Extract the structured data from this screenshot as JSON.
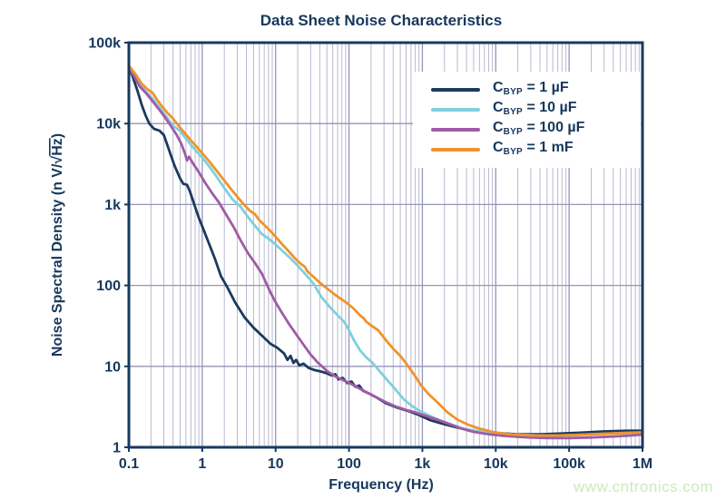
{
  "watermark": "www.cntronics.com",
  "colors": {
    "text_navy": "#16375c",
    "plot_border": "#17395f",
    "grid_major": "#9595b8",
    "grid_minor": "#b9b9cf",
    "watermark_green": "#cdeaba",
    "background": "#ffffff"
  },
  "chart_data": {
    "type": "line",
    "title": "Data Sheet Noise Characteristics",
    "xlabel": "Frequency (Hz)",
    "ylabel": "Noise Spectral Density (n V/√Hz)",
    "ylabel_parts": {
      "prefix": "Noise Spectral Density (n V/",
      "sqrt": "√",
      "sqrt_arg": "Hz",
      "suffix": ")"
    },
    "x_scale": "log",
    "y_scale": "log",
    "xlim": [
      0.1,
      1000000
    ],
    "ylim": [
      1,
      100000
    ],
    "grid": {
      "vertical_minor": true,
      "horizontal_minor": false
    },
    "legend_position": "top-right",
    "x_ticks": [
      {
        "label": "0.1",
        "value": 0.1
      },
      {
        "label": "1",
        "value": 1
      },
      {
        "label": "10",
        "value": 10
      },
      {
        "label": "100",
        "value": 100
      },
      {
        "label": "1k",
        "value": 1000
      },
      {
        "label": "10k",
        "value": 10000
      },
      {
        "label": "100k",
        "value": 100000
      },
      {
        "label": "1M",
        "value": 1000000
      }
    ],
    "y_ticks": [
      {
        "label": "100k",
        "value": 100000
      },
      {
        "label": "10k",
        "value": 10000
      },
      {
        "label": "1k",
        "value": 1000
      },
      {
        "label": "100",
        "value": 100
      },
      {
        "label": "10",
        "value": 10
      },
      {
        "label": "1",
        "value": 1
      }
    ],
    "series": [
      {
        "name": "CBYP = 1 uF",
        "legend": {
          "cap": "C",
          "sub": "BYP",
          "rest": " = 1 µF"
        },
        "color": "#1b3a5e",
        "points": [
          [
            0.1,
            52000
          ],
          [
            0.115,
            36000
          ],
          [
            0.13,
            26000
          ],
          [
            0.15,
            17000
          ],
          [
            0.17,
            12500
          ],
          [
            0.19,
            10000
          ],
          [
            0.22,
            8600
          ],
          [
            0.26,
            8200
          ],
          [
            0.3,
            7200
          ],
          [
            0.35,
            4800
          ],
          [
            0.42,
            3000
          ],
          [
            0.5,
            2100
          ],
          [
            0.55,
            1800
          ],
          [
            0.62,
            1750
          ],
          [
            0.68,
            1450
          ],
          [
            0.78,
            1000
          ],
          [
            0.9,
            680
          ],
          [
            1.05,
            480
          ],
          [
            1.25,
            320
          ],
          [
            1.5,
            210
          ],
          [
            1.8,
            130
          ],
          [
            2.2,
            95
          ],
          [
            2.8,
            62
          ],
          [
            3.8,
            40
          ],
          [
            5,
            30
          ],
          [
            6.5,
            24
          ],
          [
            8.5,
            19
          ],
          [
            10.5,
            17
          ],
          [
            13,
            14.5
          ],
          [
            14.5,
            12
          ],
          [
            16,
            13.5
          ],
          [
            17.5,
            11
          ],
          [
            19,
            12
          ],
          [
            21,
            10.3
          ],
          [
            24,
            10.8
          ],
          [
            28,
            9.6
          ],
          [
            34,
            9.0
          ],
          [
            42,
            8.6
          ],
          [
            50,
            8.2
          ],
          [
            58,
            7.7
          ],
          [
            65,
            8.0
          ],
          [
            72,
            6.9
          ],
          [
            82,
            7.2
          ],
          [
            95,
            6.2
          ],
          [
            108,
            6.5
          ],
          [
            122,
            5.6
          ],
          [
            138,
            5.8
          ],
          [
            155,
            5.0
          ],
          [
            190,
            4.6
          ],
          [
            240,
            4.1
          ],
          [
            320,
            3.5
          ],
          [
            450,
            3.1
          ],
          [
            650,
            2.8
          ],
          [
            900,
            2.5
          ],
          [
            1300,
            2.15
          ],
          [
            1900,
            1.95
          ],
          [
            2800,
            1.78
          ],
          [
            4200,
            1.65
          ],
          [
            6500,
            1.55
          ],
          [
            10000,
            1.5
          ],
          [
            20000,
            1.45
          ],
          [
            40000,
            1.45
          ],
          [
            80000,
            1.48
          ],
          [
            150000,
            1.52
          ],
          [
            300000,
            1.57
          ],
          [
            600000,
            1.6
          ],
          [
            1000000,
            1.6
          ]
        ]
      },
      {
        "name": "CBYP = 10 uF",
        "legend": {
          "cap": "C",
          "sub": "BYP",
          "rest": " = 10 µF"
        },
        "color": "#7fd0dc",
        "points": [
          [
            0.1,
            51000
          ],
          [
            0.12,
            38000
          ],
          [
            0.14,
            31000
          ],
          [
            0.17,
            25000
          ],
          [
            0.2,
            21500
          ],
          [
            0.24,
            17500
          ],
          [
            0.29,
            14000
          ],
          [
            0.34,
            11500
          ],
          [
            0.4,
            9400
          ],
          [
            0.45,
            8700
          ],
          [
            0.5,
            8100
          ],
          [
            0.6,
            6500
          ],
          [
            0.72,
            5300
          ],
          [
            0.88,
            4300
          ],
          [
            1.05,
            3600
          ],
          [
            1.3,
            2800
          ],
          [
            1.6,
            2150
          ],
          [
            2,
            1600
          ],
          [
            2.6,
            1150
          ],
          [
            3.3,
            950
          ],
          [
            4.2,
            700
          ],
          [
            5.2,
            550
          ],
          [
            6.5,
            430
          ],
          [
            8,
            380
          ],
          [
            10,
            320
          ],
          [
            12.5,
            265
          ],
          [
            16,
            215
          ],
          [
            20,
            175
          ],
          [
            26,
            135
          ],
          [
            33,
            105
          ],
          [
            42,
            72
          ],
          [
            54,
            55
          ],
          [
            68,
            44
          ],
          [
            87,
            35
          ],
          [
            100,
            28
          ],
          [
            117,
            21
          ],
          [
            140,
            16
          ],
          [
            170,
            13
          ],
          [
            210,
            11
          ],
          [
            260,
            8.8
          ],
          [
            330,
            6.8
          ],
          [
            400,
            5.6
          ],
          [
            470,
            4.7
          ],
          [
            560,
            3.9
          ],
          [
            700,
            3.3
          ],
          [
            900,
            2.85
          ],
          [
            1200,
            2.5
          ],
          [
            1700,
            2.15
          ],
          [
            2500,
            1.9
          ],
          [
            3800,
            1.68
          ],
          [
            6000,
            1.57
          ],
          [
            10000,
            1.48
          ],
          [
            20000,
            1.43
          ],
          [
            40000,
            1.4
          ],
          [
            80000,
            1.4
          ],
          [
            160000,
            1.43
          ],
          [
            320000,
            1.47
          ],
          [
            640000,
            1.5
          ],
          [
            1000000,
            1.52
          ]
        ]
      },
      {
        "name": "CBYP = 100 uF",
        "legend": {
          "cap": "C",
          "sub": "BYP",
          "rest": " = 100 µF"
        },
        "color": "#a05ba5",
        "points": [
          [
            0.1,
            50000
          ],
          [
            0.12,
            37000
          ],
          [
            0.14,
            29000
          ],
          [
            0.17,
            24000
          ],
          [
            0.2,
            20000
          ],
          [
            0.25,
            15500
          ],
          [
            0.3,
            12500
          ],
          [
            0.37,
            9500
          ],
          [
            0.45,
            7200
          ],
          [
            0.52,
            5600
          ],
          [
            0.58,
            4300
          ],
          [
            0.62,
            3500
          ],
          [
            0.66,
            3900
          ],
          [
            0.75,
            3200
          ],
          [
            0.9,
            2500
          ],
          [
            1.1,
            1850
          ],
          [
            1.35,
            1400
          ],
          [
            1.7,
            1050
          ],
          [
            2.1,
            760
          ],
          [
            2.7,
            520
          ],
          [
            3.4,
            350
          ],
          [
            4.2,
            250
          ],
          [
            5.2,
            190
          ],
          [
            6.5,
            140
          ],
          [
            7.5,
            105
          ],
          [
            8.5,
            82
          ],
          [
            10,
            62
          ],
          [
            12,
            47
          ],
          [
            15,
            34
          ],
          [
            19,
            25
          ],
          [
            24,
            18.5
          ],
          [
            30,
            14
          ],
          [
            38,
            11
          ],
          [
            43,
            10
          ],
          [
            50,
            8.8
          ],
          [
            65,
            7.5
          ],
          [
            85,
            6.7
          ],
          [
            110,
            6.0
          ],
          [
            140,
            5.3
          ],
          [
            180,
            4.7
          ],
          [
            240,
            4.1
          ],
          [
            320,
            3.6
          ],
          [
            430,
            3.2
          ],
          [
            600,
            2.9
          ],
          [
            800,
            2.7
          ],
          [
            1100,
            2.45
          ],
          [
            1600,
            2.2
          ],
          [
            2300,
            1.95
          ],
          [
            3400,
            1.7
          ],
          [
            5000,
            1.55
          ],
          [
            8000,
            1.45
          ],
          [
            13000,
            1.38
          ],
          [
            25000,
            1.33
          ],
          [
            50000,
            1.3
          ],
          [
            100000,
            1.3
          ],
          [
            200000,
            1.32
          ],
          [
            400000,
            1.36
          ],
          [
            700000,
            1.4
          ],
          [
            1000000,
            1.44
          ]
        ]
      },
      {
        "name": "CBYP = 1 mF",
        "legend": {
          "cap": "C",
          "sub": "BYP",
          "rest": " = 1 mF"
        },
        "color": "#f0932a",
        "points": [
          [
            0.1,
            52000
          ],
          [
            0.125,
            40000
          ],
          [
            0.15,
            31000
          ],
          [
            0.18,
            26500
          ],
          [
            0.21,
            24000
          ],
          [
            0.24,
            20000
          ],
          [
            0.28,
            16500
          ],
          [
            0.33,
            13800
          ],
          [
            0.4,
            11500
          ],
          [
            0.48,
            9300
          ],
          [
            0.58,
            7600
          ],
          [
            0.7,
            6200
          ],
          [
            0.85,
            5100
          ],
          [
            1,
            4300
          ],
          [
            1.25,
            3400
          ],
          [
            1.55,
            2650
          ],
          [
            1.9,
            2100
          ],
          [
            2.4,
            1600
          ],
          [
            3,
            1250
          ],
          [
            3.7,
            1000
          ],
          [
            4.5,
            830
          ],
          [
            5.2,
            760
          ],
          [
            6,
            640
          ],
          [
            7,
            560
          ],
          [
            8.5,
            470
          ],
          [
            10,
            400
          ],
          [
            12,
            330
          ],
          [
            15,
            265
          ],
          [
            18,
            220
          ],
          [
            22,
            185
          ],
          [
            25,
            170
          ],
          [
            27,
            150
          ],
          [
            32,
            130
          ],
          [
            40,
            108
          ],
          [
            50,
            92
          ],
          [
            63,
            78
          ],
          [
            78,
            68
          ],
          [
            95,
            60
          ],
          [
            115,
            52
          ],
          [
            140,
            43
          ],
          [
            160,
            39
          ],
          [
            170,
            36
          ],
          [
            200,
            32
          ],
          [
            250,
            28
          ],
          [
            320,
            21
          ],
          [
            400,
            16.5
          ],
          [
            500,
            13.5
          ],
          [
            620,
            10.5
          ],
          [
            780,
            7.8
          ],
          [
            950,
            5.9
          ],
          [
            1200,
            4.6
          ],
          [
            1600,
            3.6
          ],
          [
            2200,
            2.7
          ],
          [
            3000,
            2.2
          ],
          [
            4200,
            1.9
          ],
          [
            6000,
            1.7
          ],
          [
            9000,
            1.55
          ],
          [
            15000,
            1.45
          ],
          [
            30000,
            1.4
          ],
          [
            60000,
            1.4
          ],
          [
            120000,
            1.42
          ],
          [
            250000,
            1.46
          ],
          [
            500000,
            1.5
          ],
          [
            1000000,
            1.53
          ]
        ]
      }
    ]
  }
}
